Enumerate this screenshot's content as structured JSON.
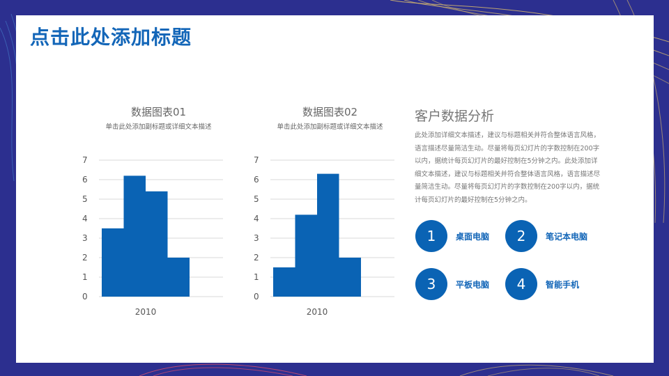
{
  "slide": {
    "title": "点击此处添加标题"
  },
  "charts": [
    {
      "title": "数据图表01",
      "subtitle": "单击此处添加副标题或详细文本描述",
      "x_label": "2010"
    },
    {
      "title": "数据图表02",
      "subtitle": "单击此处添加副标题或详细文本描述",
      "x_label": "2010"
    }
  ],
  "chart_data": [
    {
      "type": "bar",
      "title": "数据图表01",
      "categories": [
        "2010"
      ],
      "series": [
        {
          "values": [
            3.5
          ]
        },
        {
          "values": [
            6.2
          ]
        },
        {
          "values": [
            5.4
          ]
        },
        {
          "values": [
            2.0
          ]
        }
      ],
      "yticks": [
        "0",
        "1",
        "2",
        "3",
        "4",
        "5",
        "6",
        "7"
      ],
      "ylim": [
        0,
        7
      ],
      "grid": true,
      "color": "#0a63b4"
    },
    {
      "type": "bar",
      "title": "数据图表02",
      "categories": [
        "2010"
      ],
      "series": [
        {
          "values": [
            1.5
          ]
        },
        {
          "values": [
            4.2
          ]
        },
        {
          "values": [
            6.3
          ]
        },
        {
          "values": [
            2.0
          ]
        }
      ],
      "yticks": [
        "0",
        "1",
        "2",
        "3",
        "4",
        "5",
        "6",
        "7"
      ],
      "ylim": [
        0,
        7
      ],
      "grid": true,
      "color": "#0a63b4"
    }
  ],
  "info": {
    "title": "客户数据分析",
    "body": "此处添加详细文本描述，建议与标题相关并符合整体语言风格，语言描述尽量简洁生动。尽量将每页幻灯片的字数控制在200字以内，据统计每页幻灯片的最好控制在5分钟之内。此处添加详细文本描述，建议与标题相关并符合整体语言风格，语言描述尽量简洁生动。尽量将每页幻灯片的字数控制在200字以内，据统计每页幻灯片的最好控制在5分钟之内。"
  },
  "features": [
    {
      "num": "1",
      "label": "桌面电脑"
    },
    {
      "num": "2",
      "label": "笔记本电脑"
    },
    {
      "num": "3",
      "label": "平板电脑"
    },
    {
      "num": "4",
      "label": "智能手机"
    }
  ],
  "colors": {
    "accent": "#0a63b4",
    "title": "#1366b8",
    "background": "#2c2f8f"
  }
}
